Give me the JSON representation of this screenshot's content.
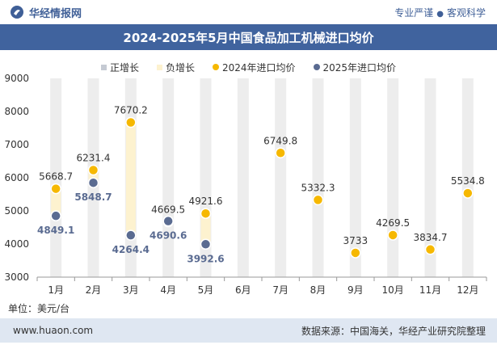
{
  "header": {
    "brand": "华经情报网",
    "tagline_left": "专业严谨",
    "tagline_sep": "●",
    "tagline_right": "客观科学"
  },
  "footer": {
    "unit": "单位：美元/台",
    "site": "www.huaon.com",
    "source": "数据来源：中国海关，华经产业研究院整理"
  },
  "colors": {
    "header_bar": "#40639e",
    "brand": "#3f5f97",
    "footer_bg": "#dfe7f2",
    "positive": "#c5cad3",
    "negative": "#fdf2cf",
    "series_2024": "#f6b800",
    "series_2025": "#5a6b91",
    "column_bg": "#ededed"
  },
  "chart_data": {
    "type": "line",
    "title": "2024-2025年5月中国食品加工机械进口均价",
    "categories": [
      "1月",
      "2月",
      "3月",
      "4月",
      "5月",
      "6月",
      "7月",
      "8月",
      "9月",
      "10月",
      "11月",
      "12月"
    ],
    "ylim": [
      3000,
      9000
    ],
    "yticks": [
      3000,
      4000,
      5000,
      6000,
      7000,
      8000,
      9000
    ],
    "legend": [
      "正增长",
      "负增长",
      "2024年进口均价",
      "2025年进口均价"
    ],
    "legend_position": "top-center",
    "series": [
      {
        "name": "2024年进口均价",
        "values": [
          5668.7,
          6231.4,
          7670.2,
          4669.5,
          4921.6,
          null,
          6749.8,
          5332.3,
          3733,
          4269.5,
          3834.7,
          5534.8
        ],
        "labels": [
          "5668.7",
          "6231.4",
          "7670.2",
          "4669.5",
          "4921.6",
          "",
          "6749.8",
          "5332.3",
          "3733",
          "4269.5",
          "3834.7",
          "5534.8"
        ]
      },
      {
        "name": "2025年进口均价",
        "values": [
          4849.1,
          5848.7,
          4264.4,
          4690.6,
          3992.6,
          null,
          null,
          null,
          null,
          null,
          null,
          null
        ],
        "labels": [
          "4849.1",
          "5848.7",
          "4264.4",
          "4690.6",
          "3992.6",
          "",
          "",
          "",
          "",
          "",
          "",
          ""
        ]
      }
    ]
  }
}
